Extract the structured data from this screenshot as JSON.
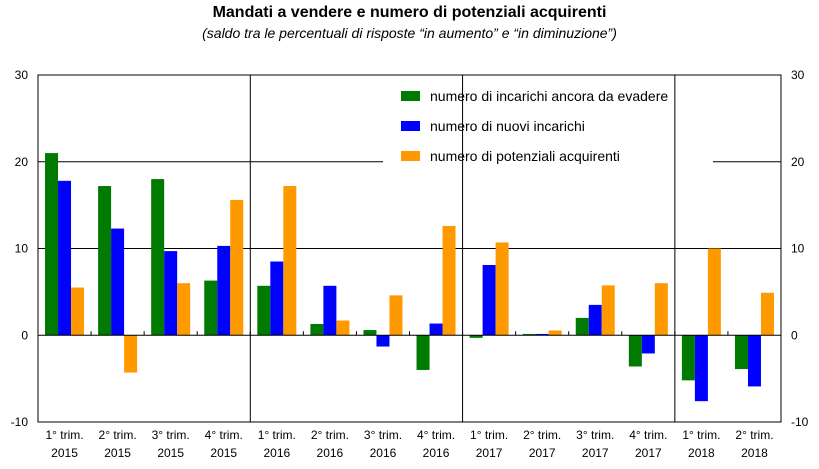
{
  "chart_data": {
    "type": "bar",
    "title": "Mandati a vendere e numero di potenziali acquirenti",
    "subtitle": "(saldo tra le percentuali di risposte “in aumento” e “in diminuzione”)",
    "categories": [
      [
        "1° trim.",
        "2015"
      ],
      [
        "2° trim.",
        "2015"
      ],
      [
        "3° trim.",
        "2015"
      ],
      [
        "4° trim.",
        "2015"
      ],
      [
        "1° trim.",
        "2016"
      ],
      [
        "2° trim.",
        "2016"
      ],
      [
        "3° trim.",
        "2016"
      ],
      [
        "4° trim.",
        "2016"
      ],
      [
        "1° trim.",
        "2017"
      ],
      [
        "2° trim.",
        "2017"
      ],
      [
        "3° trim.",
        "2017"
      ],
      [
        "4° trim.",
        "2017"
      ],
      [
        "1° trim.",
        "2018"
      ],
      [
        "2° trim.",
        "2018"
      ]
    ],
    "series": [
      {
        "name": "numero di incarichi ancora da evadere",
        "color": "#007a00",
        "values": [
          21.0,
          17.2,
          18.0,
          6.3,
          5.7,
          1.3,
          0.6,
          -4.0,
          -0.3,
          0.15,
          2.0,
          -3.6,
          -5.2,
          -3.9
        ]
      },
      {
        "name": "numero di nuovi incarichi",
        "color": "#0000ff",
        "values": [
          17.8,
          12.3,
          9.7,
          10.3,
          8.5,
          5.7,
          -1.3,
          1.35,
          8.1,
          0.15,
          3.5,
          -2.1,
          -7.6,
          -5.9
        ]
      },
      {
        "name": "numero di potenziali acquirenti",
        "color": "#ff9900",
        "values": [
          5.5,
          -4.3,
          6.0,
          15.6,
          17.2,
          1.7,
          4.6,
          12.6,
          10.7,
          0.55,
          5.75,
          6.0,
          10.0,
          4.9
        ]
      }
    ],
    "ylim": [
      -10,
      30
    ],
    "yticks": [
      -10,
      0,
      10,
      20,
      30
    ],
    "grid": true,
    "legend": "top-center",
    "xlabel": "",
    "ylabel": ""
  }
}
